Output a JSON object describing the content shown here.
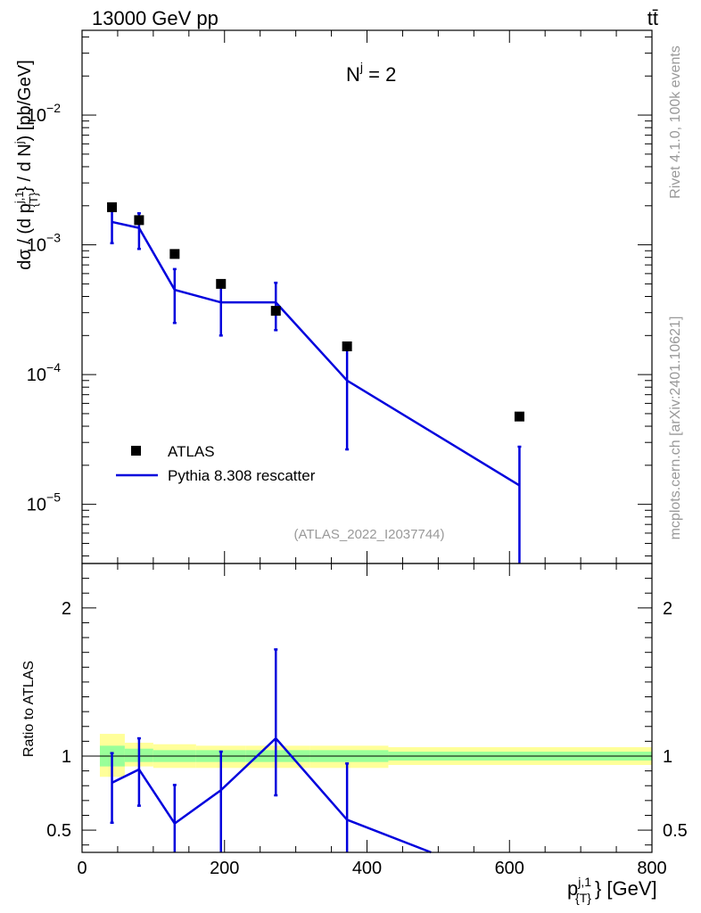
{
  "header": {
    "left": "13000 GeV pp",
    "right": "tt̄"
  },
  "side": {
    "rivet": "Rivet 4.1.0,  100k events",
    "mcplots": "mcplots.cern.ch [arXiv:2401.10621]"
  },
  "chart_data": [
    {
      "type": "line",
      "title": "N^j = 2",
      "annotation": "(ATLAS_2022_I2037744)",
      "ylabel": "dσ / (d p_{T}^{j,1} / d N^{j}) [pb/GeV]",
      "yscale": "log",
      "xlim": [
        0,
        800
      ],
      "ylim": [
        3.5e-06,
        0.045
      ],
      "yticks": [
        {
          "v": 1e-05,
          "mant": "10",
          "exp": "−5"
        },
        {
          "v": 0.0001,
          "mant": "10",
          "exp": "−4"
        },
        {
          "v": 0.001,
          "mant": "10",
          "exp": "−3"
        },
        {
          "v": 0.01,
          "mant": "10",
          "exp": "−2"
        }
      ],
      "legend": [
        {
          "label": "ATLAS",
          "kind": "marker",
          "color": "#000000"
        },
        {
          "label": "Pythia 8.308 rescatter",
          "kind": "line",
          "color": "#0000dd"
        }
      ],
      "atlas": {
        "name": "ATLAS",
        "x": [
          42,
          80,
          130,
          195,
          272,
          372,
          614
        ],
        "y": [
          0.00195,
          0.00155,
          0.00085,
          0.0005,
          0.00031,
          0.000165,
          4.75e-05
        ]
      },
      "pythia": {
        "name": "Pythia 8.308 rescatter",
        "x": [
          42,
          80,
          130,
          195,
          272,
          372,
          614
        ],
        "y": [
          0.0015,
          0.00135,
          0.00045,
          0.00036,
          0.00036,
          9e-05,
          1.4e-05
        ],
        "err_low": [
          0.00103,
          0.00093,
          0.00025,
          0.0002,
          0.00022,
          2.65e-05,
          1e-06
        ],
        "err_high": [
          0.002,
          0.00175,
          0.00065,
          0.0005,
          0.00051,
          0.000155,
          2.78e-05
        ]
      }
    },
    {
      "type": "line",
      "ylabel": "Ratio to ATLAS",
      "xlabel": "p_{T}^{j,1} [GeV]",
      "xlim": [
        0,
        800
      ],
      "ylim": [
        0.35,
        2.3
      ],
      "xticks": [
        0,
        200,
        400,
        600,
        800
      ],
      "yticks": [
        {
          "v": 0.5,
          "label": "0.5"
        },
        {
          "v": 1,
          "label": "1"
        },
        {
          "v": 2,
          "label": "2"
        }
      ],
      "bands": [
        {
          "x0": 25,
          "x1": 60,
          "y_in_lo": 0.93,
          "y_in_hi": 1.07,
          "y_out_lo": 0.86,
          "y_out_hi": 1.15
        },
        {
          "x0": 60,
          "x1": 100,
          "y_in_lo": 0.96,
          "y_in_hi": 1.05,
          "y_out_lo": 0.93,
          "y_out_hi": 1.09
        },
        {
          "x0": 100,
          "x1": 160,
          "y_in_lo": 0.96,
          "y_in_hi": 1.04,
          "y_out_lo": 0.92,
          "y_out_hi": 1.08
        },
        {
          "x0": 160,
          "x1": 230,
          "y_in_lo": 0.96,
          "y_in_hi": 1.04,
          "y_out_lo": 0.92,
          "y_out_hi": 1.07
        },
        {
          "x0": 230,
          "x1": 320,
          "y_in_lo": 0.96,
          "y_in_hi": 1.04,
          "y_out_lo": 0.92,
          "y_out_hi": 1.07
        },
        {
          "x0": 320,
          "x1": 430,
          "y_in_lo": 0.96,
          "y_in_hi": 1.04,
          "y_out_lo": 0.92,
          "y_out_hi": 1.07
        },
        {
          "x0": 430,
          "x1": 800,
          "y_in_lo": 0.97,
          "y_in_hi": 1.03,
          "y_out_lo": 0.94,
          "y_out_hi": 1.06
        }
      ],
      "ratio": {
        "x": [
          42,
          80,
          130,
          195,
          272,
          372,
          490
        ],
        "y": [
          0.82,
          0.91,
          0.545,
          0.77,
          1.12,
          0.57,
          0.35
        ],
        "err_low": [
          0.55,
          0.665,
          0.33,
          0.33,
          0.735,
          0.33,
          null
        ],
        "err_high": [
          1.02,
          1.12,
          0.805,
          1.03,
          1.72,
          0.95,
          null
        ]
      },
      "band_colors": {
        "inner": "#99ff99",
        "outer": "#ffff99"
      }
    }
  ]
}
